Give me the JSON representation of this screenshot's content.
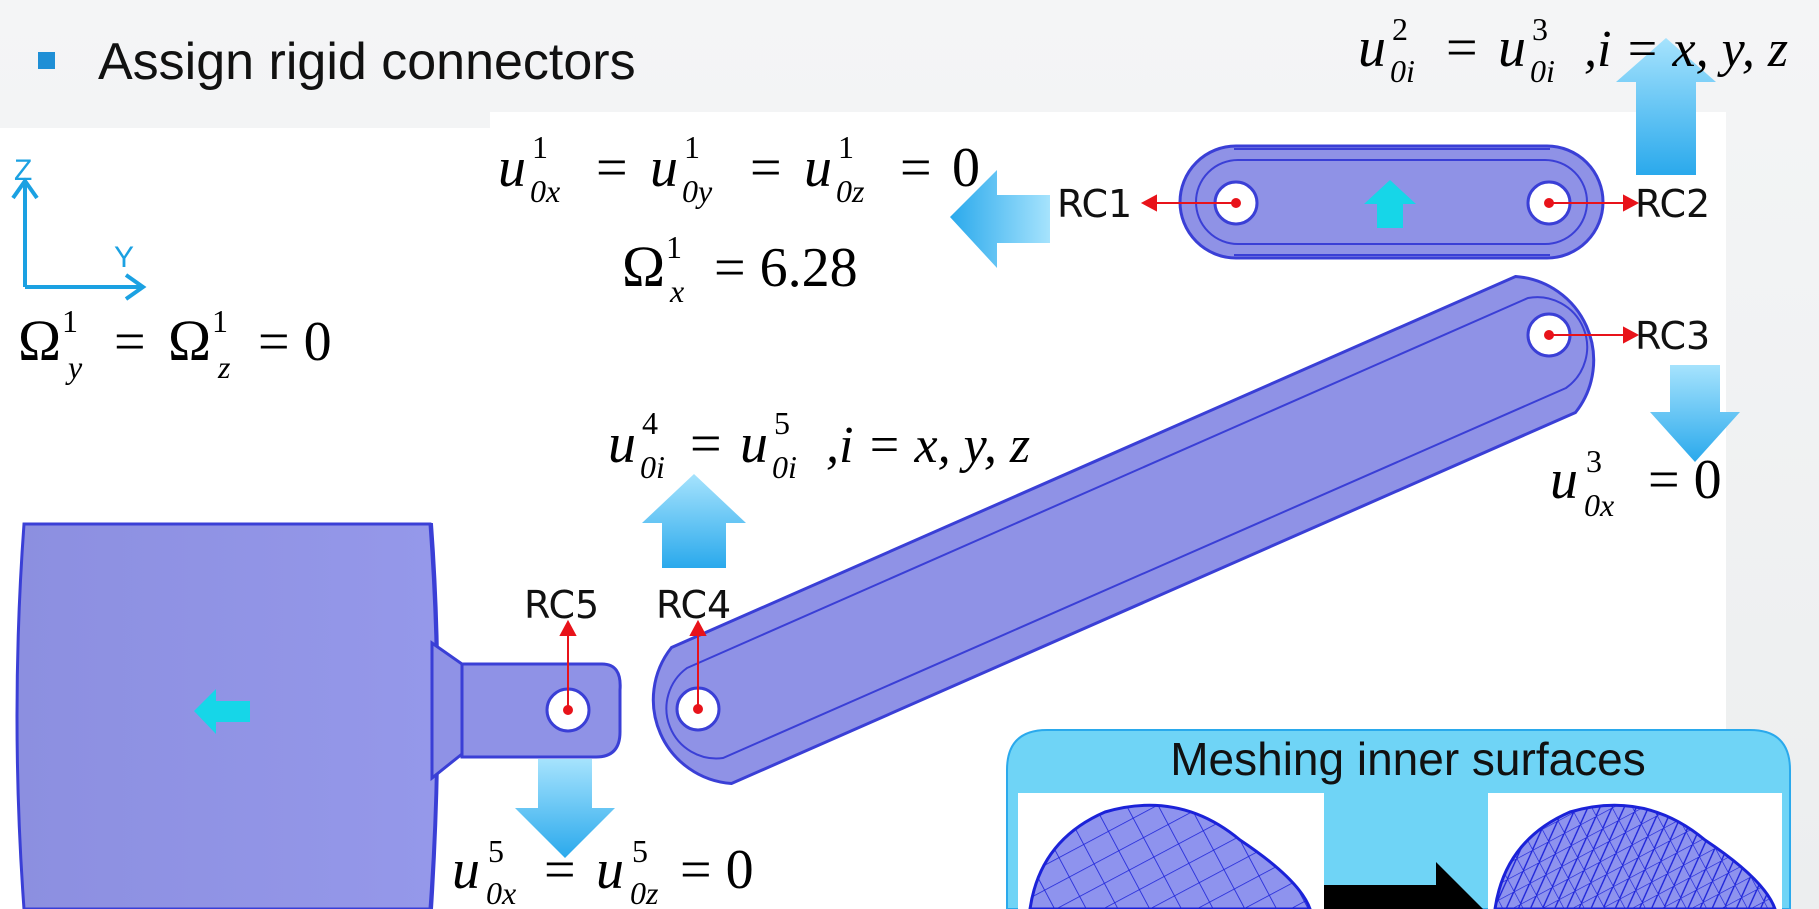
{
  "slide": {
    "bullet": "Assign rigid connectors"
  },
  "axes": {
    "z_label": "Z",
    "y_label": "Y"
  },
  "connectors": {
    "rc1": "RC1",
    "rc2": "RC2",
    "rc3": "RC3",
    "rc4": "RC4",
    "rc5": "RC5"
  },
  "equations": {
    "top_right": {
      "u_sym": "u",
      "sup_a": "2",
      "sub_a": "0i",
      "eq1": "=",
      "sup_b": "3",
      "sub_b": "0i",
      "tail": ",i = x, y, z"
    },
    "rc1_disp": {
      "u": "u",
      "sup": "1",
      "sub_x": "0x",
      "sub_y": "0y",
      "sub_z": "0z",
      "eq": "=",
      "zero": "0"
    },
    "rc1_rot": {
      "omega": "Ω",
      "sup": "1",
      "sub": "x",
      "value": "= 6.28"
    },
    "left_rot": {
      "omega": "Ω",
      "sup": "1",
      "sub_y": "y",
      "sub_z": "z",
      "eq": "=",
      "zero": "= 0"
    },
    "rc4_rc5": {
      "u": "u",
      "sup_a": "4",
      "sub_a": "0i",
      "eq": "=",
      "sup_b": "5",
      "sub_b": "0i",
      "tail": ",i = x, y, z"
    },
    "rc3_disp": {
      "u": "u",
      "sup": "3",
      "sub": "0x",
      "tail": "= 0"
    },
    "rc5_disp": {
      "u": "u",
      "sup": "5",
      "sub_x": "0x",
      "sub_z": "0z",
      "eq": "=",
      "tail": "= 0"
    }
  },
  "inset": {
    "title": "Meshing inner surfaces"
  },
  "colors": {
    "part_fill": "#8f92e6",
    "part_edge": "#3a3fd6",
    "arrow_light": "#7fd6fb",
    "arrow_dark": "#29a8ea",
    "axis": "#1ba1e2",
    "connector": "#e8131a",
    "inset_bg": "#6fd4f6",
    "cyan_marker": "#16d6e8"
  }
}
